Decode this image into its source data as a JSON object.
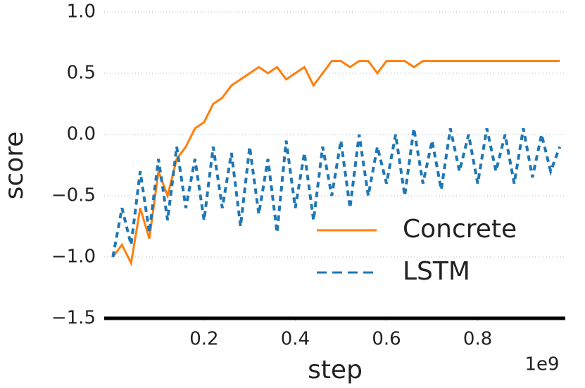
{
  "chart_data": {
    "type": "line",
    "xlabel": "step",
    "ylabel": "score",
    "x_offset_label": "1e9",
    "x": [
      0.0,
      0.02,
      0.04,
      0.06,
      0.08,
      0.1,
      0.12,
      0.14,
      0.16,
      0.18,
      0.2,
      0.22,
      0.24,
      0.26,
      0.28,
      0.3,
      0.32,
      0.34,
      0.36,
      0.38,
      0.4,
      0.42,
      0.44,
      0.46,
      0.48,
      0.5,
      0.52,
      0.54,
      0.56,
      0.58,
      0.6,
      0.62,
      0.64,
      0.66,
      0.68,
      0.7,
      0.72,
      0.74,
      0.76,
      0.78,
      0.8,
      0.82,
      0.84,
      0.86,
      0.88,
      0.9,
      0.92,
      0.94,
      0.96,
      0.98
    ],
    "series": [
      {
        "name": "Concrete",
        "color": "#ff7f0e",
        "dash": false,
        "values": [
          -1.0,
          -0.9,
          -1.05,
          -0.6,
          -0.85,
          -0.3,
          -0.5,
          -0.2,
          -0.1,
          0.05,
          0.1,
          0.25,
          0.3,
          0.4,
          0.45,
          0.5,
          0.55,
          0.5,
          0.55,
          0.45,
          0.5,
          0.55,
          0.4,
          0.5,
          0.6,
          0.6,
          0.55,
          0.6,
          0.6,
          0.5,
          0.6,
          0.6,
          0.6,
          0.55,
          0.6,
          0.6,
          0.6,
          0.6,
          0.6,
          0.6,
          0.6,
          0.6,
          0.6,
          0.6,
          0.6,
          0.6,
          0.6,
          0.6,
          0.6,
          0.6
        ]
      },
      {
        "name": "LSTM",
        "color": "#1f77b4",
        "dash": true,
        "values": [
          -1.0,
          -0.6,
          -0.9,
          -0.3,
          -0.8,
          -0.2,
          -0.7,
          -0.1,
          -0.6,
          -0.2,
          -0.7,
          -0.1,
          -0.6,
          -0.15,
          -0.75,
          -0.1,
          -0.65,
          -0.2,
          -0.8,
          -0.05,
          -0.6,
          -0.15,
          -0.7,
          -0.1,
          -0.5,
          -0.05,
          -0.6,
          0.0,
          -0.5,
          -0.1,
          -0.4,
          0.0,
          -0.5,
          0.05,
          -0.4,
          -0.05,
          -0.45,
          0.05,
          -0.3,
          0.0,
          -0.4,
          0.05,
          -0.3,
          0.0,
          -0.4,
          0.05,
          -0.35,
          0.0,
          -0.3,
          -0.1
        ]
      }
    ],
    "xlim": [
      -0.019,
      0.992
    ],
    "ylim": [
      -1.5,
      1.0
    ],
    "xticks": [
      0.2,
      0.4,
      0.6,
      0.8
    ],
    "yticks": [
      -1.5,
      -1.0,
      -0.5,
      0.0,
      0.5,
      1.0
    ],
    "grid": true,
    "legend": "lower right"
  }
}
